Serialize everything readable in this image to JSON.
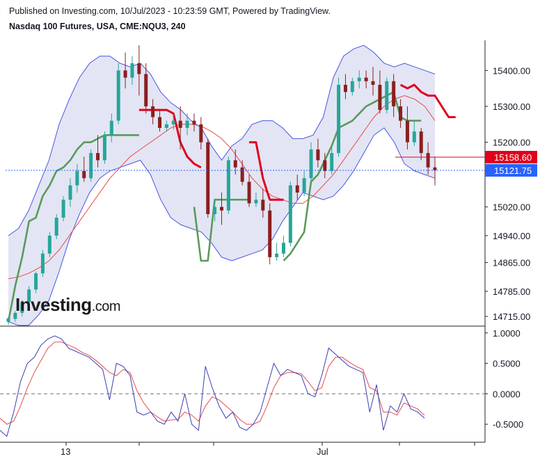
{
  "header": {
    "published": "Published on Investing.com, 10/Jul/2023 - 10:23:59 GMT, Powered by TradingView.",
    "symbol": "Nasdaq 100 Futures, USA, CME:NQU3, 240"
  },
  "watermark": {
    "brand": "Investing",
    "suffix": ".com"
  },
  "colors": {
    "up": "#26a69a",
    "down": "#8b1f1f",
    "band": "#4a55e0",
    "band_fill": "#e3e5f4",
    "ma": "#e74c4c",
    "trail_red": "#e0001b",
    "trail_green": "#5a9a5a",
    "stoch_k": "#3a3fb0",
    "stoch_d": "#e74c4c",
    "last_label": "#2962ff",
    "ref_label": "#e0001b"
  },
  "chart_data": [
    {
      "type": "candlestick",
      "title": "Nasdaq 100 Futures, USA, CME:NQU3, 240",
      "x_tick_labels": [
        "13",
        "Jul"
      ],
      "y_tick_labels": [
        "15400.00",
        "15300.00",
        "15200.00",
        "15020.00",
        "14940.00",
        "14865.00",
        "14785.00",
        "14715.00"
      ],
      "ylim": [
        14690,
        15480
      ],
      "price_labels": {
        "reference": "15158.60",
        "last": "15121.75"
      },
      "bollinger_upper": [
        14940,
        14960,
        15010,
        15080,
        15150,
        15250,
        15320,
        15380,
        15420,
        15440,
        15440,
        15420,
        15410,
        15420,
        15390,
        15340,
        15310,
        15290,
        15260,
        15240,
        15190,
        15150,
        15190,
        15210,
        15250,
        15260,
        15260,
        15240,
        15210,
        15210,
        15220,
        15270,
        15380,
        15440,
        15460,
        15470,
        15450,
        15420,
        15410,
        15420,
        15410,
        15400,
        15390
      ],
      "bollinger_lower": [
        14700,
        14690,
        14690,
        14720,
        14760,
        14840,
        14930,
        15000,
        15060,
        15100,
        15120,
        15130,
        15140,
        15150,
        15110,
        15040,
        14990,
        14970,
        14960,
        14950,
        14920,
        14880,
        14870,
        14880,
        14890,
        14900,
        14930,
        14980,
        15020,
        15060,
        15050,
        15040,
        15050,
        15080,
        15120,
        15170,
        15220,
        15240,
        15200,
        15140,
        15120,
        15110,
        15100
      ],
      "candles": [
        {
          "o": 14700,
          "h": 14715,
          "c": 14710,
          "l": 14692
        },
        {
          "o": 14708,
          "h": 14730,
          "c": 14725,
          "l": 14700
        },
        {
          "o": 14725,
          "h": 14760,
          "c": 14755,
          "l": 14715
        },
        {
          "o": 14755,
          "h": 14800,
          "c": 14790,
          "l": 14745
        },
        {
          "o": 14790,
          "h": 14840,
          "c": 14835,
          "l": 14780
        },
        {
          "o": 14835,
          "h": 14900,
          "c": 14890,
          "l": 14825
        },
        {
          "o": 14890,
          "h": 14950,
          "c": 14940,
          "l": 14880
        },
        {
          "o": 14940,
          "h": 15000,
          "c": 14990,
          "l": 14930
        },
        {
          "o": 14990,
          "h": 15050,
          "c": 15040,
          "l": 14980
        },
        {
          "o": 15040,
          "h": 15100,
          "c": 15080,
          "l": 15020
        },
        {
          "o": 15080,
          "h": 15140,
          "c": 15120,
          "l": 15060
        },
        {
          "o": 15120,
          "h": 15160,
          "c": 15100,
          "l": 15090
        },
        {
          "o": 15100,
          "h": 15180,
          "c": 15170,
          "l": 15090
        },
        {
          "o": 15170,
          "h": 15220,
          "c": 15150,
          "l": 15130
        },
        {
          "o": 15150,
          "h": 15230,
          "c": 15220,
          "l": 15140
        },
        {
          "o": 15220,
          "h": 15280,
          "c": 15260,
          "l": 15200
        },
        {
          "o": 15260,
          "h": 15420,
          "c": 15400,
          "l": 15250
        },
        {
          "o": 15400,
          "h": 15450,
          "c": 15380,
          "l": 15350
        },
        {
          "o": 15380,
          "h": 15440,
          "c": 15420,
          "l": 15360
        },
        {
          "o": 15420,
          "h": 15470,
          "c": 15390,
          "l": 15330
        },
        {
          "o": 15390,
          "h": 15420,
          "c": 15300,
          "l": 15280
        },
        {
          "o": 15300,
          "h": 15320,
          "c": 15270,
          "l": 15250
        },
        {
          "o": 15270,
          "h": 15290,
          "c": 15240,
          "l": 15230
        },
        {
          "o": 15240,
          "h": 15260,
          "c": 15250,
          "l": 15230
        },
        {
          "o": 15250,
          "h": 15280,
          "c": 15260,
          "l": 15235
        },
        {
          "o": 15260,
          "h": 15300,
          "c": 15240,
          "l": 15180
        },
        {
          "o": 15240,
          "h": 15280,
          "c": 15260,
          "l": 15220
        },
        {
          "o": 15260,
          "h": 15280,
          "c": 15250,
          "l": 15230
        },
        {
          "o": 15250,
          "h": 15270,
          "c": 15200,
          "l": 15180
        },
        {
          "o": 15200,
          "h": 15210,
          "c": 15000,
          "l": 14990
        },
        {
          "o": 15000,
          "h": 15040,
          "c": 15020,
          "l": 14980
        },
        {
          "o": 15020,
          "h": 15060,
          "c": 15010,
          "l": 14970
        },
        {
          "o": 15010,
          "h": 15160,
          "c": 15150,
          "l": 15000
        },
        {
          "o": 15150,
          "h": 15180,
          "c": 15130,
          "l": 15110
        },
        {
          "o": 15130,
          "h": 15150,
          "c": 15090,
          "l": 15080
        },
        {
          "o": 15090,
          "h": 15110,
          "c": 15030,
          "l": 15020
        },
        {
          "o": 15030,
          "h": 15060,
          "c": 15040,
          "l": 15020
        },
        {
          "o": 15040,
          "h": 15070,
          "c": 15010,
          "l": 14990
        },
        {
          "o": 15010,
          "h": 15030,
          "c": 14880,
          "l": 14860
        },
        {
          "o": 14880,
          "h": 14920,
          "c": 14890,
          "l": 14870
        },
        {
          "o": 14890,
          "h": 14940,
          "c": 14920,
          "l": 14880
        },
        {
          "o": 14920,
          "h": 15090,
          "c": 15080,
          "l": 14910
        },
        {
          "o": 15080,
          "h": 15110,
          "c": 15060,
          "l": 15040
        },
        {
          "o": 15060,
          "h": 15120,
          "c": 15100,
          "l": 15050
        },
        {
          "o": 15100,
          "h": 15200,
          "c": 15180,
          "l": 15090
        },
        {
          "o": 15180,
          "h": 15210,
          "c": 15150,
          "l": 15130
        },
        {
          "o": 15150,
          "h": 15170,
          "c": 15120,
          "l": 15100
        },
        {
          "o": 15120,
          "h": 15190,
          "c": 15170,
          "l": 15110
        },
        {
          "o": 15170,
          "h": 15380,
          "c": 15360,
          "l": 15160
        },
        {
          "o": 15360,
          "h": 15390,
          "c": 15340,
          "l": 15320
        },
        {
          "o": 15340,
          "h": 15380,
          "c": 15370,
          "l": 15330
        },
        {
          "o": 15370,
          "h": 15400,
          "c": 15380,
          "l": 15350
        },
        {
          "o": 15380,
          "h": 15400,
          "c": 15370,
          "l": 15350
        },
        {
          "o": 15370,
          "h": 15410,
          "c": 15360,
          "l": 15330
        },
        {
          "o": 15360,
          "h": 15400,
          "c": 15290,
          "l": 15280
        },
        {
          "o": 15290,
          "h": 15380,
          "c": 15370,
          "l": 15280
        },
        {
          "o": 15370,
          "h": 15390,
          "c": 15300,
          "l": 15270
        },
        {
          "o": 15300,
          "h": 15320,
          "c": 15260,
          "l": 15240
        },
        {
          "o": 15260,
          "h": 15300,
          "c": 15200,
          "l": 15180
        },
        {
          "o": 15200,
          "h": 15260,
          "c": 15230,
          "l": 15190
        },
        {
          "o": 15230,
          "h": 15240,
          "c": 15170,
          "l": 15150
        },
        {
          "o": 15170,
          "h": 15200,
          "c": 15130,
          "l": 15110
        },
        {
          "o": 15130,
          "h": 15160,
          "c": 15122,
          "l": 15080
        }
      ],
      "ma_mid": [
        14820,
        14825,
        14835,
        14850,
        14870,
        14900,
        14940,
        14980,
        15020,
        15060,
        15100,
        15130,
        15160,
        15180,
        15200,
        15220,
        15240,
        15250,
        15250,
        15245,
        15230,
        15210,
        15180,
        15140,
        15100,
        15070,
        15050,
        15040,
        15030,
        15030,
        15050,
        15080,
        15110,
        15150,
        15190,
        15230,
        15270,
        15300,
        15320,
        15330,
        15320,
        15300,
        15260
      ],
      "trail_segments": [
        {
          "color": "green",
          "points": [
            [
              0,
              14700
            ],
            [
              1,
              14800
            ],
            [
              2,
              14880
            ],
            [
              3,
              14980
            ],
            [
              4,
              14990
            ],
            [
              5,
              15050
            ],
            [
              6,
              15080
            ],
            [
              7,
              15120
            ],
            [
              8,
              15130
            ],
            [
              9,
              15150
            ],
            [
              10,
              15180
            ],
            [
              11,
              15200
            ],
            [
              12,
              15200
            ],
            [
              13,
              15210
            ],
            [
              14,
              15220
            ],
            [
              15,
              15220
            ],
            [
              16,
              15220
            ],
            [
              17,
              15220
            ],
            [
              18,
              15220
            ],
            [
              19,
              15220
            ]
          ]
        },
        {
          "color": "red",
          "points": [
            [
              19,
              15290
            ],
            [
              20,
              15290
            ],
            [
              21,
              15290
            ],
            [
              22,
              15290
            ],
            [
              23,
              15290
            ],
            [
              24,
              15280
            ],
            [
              25,
              15200
            ],
            [
              26,
              15160
            ],
            [
              27,
              15140
            ],
            [
              28,
              15130
            ]
          ]
        },
        {
          "color": "green",
          "points": [
            [
              27,
              15020
            ],
            [
              28,
              14870
            ],
            [
              29,
              14870
            ],
            [
              30,
              15040
            ],
            [
              31,
              15040
            ],
            [
              32,
              15040
            ],
            [
              33,
              15040
            ],
            [
              34,
              15040
            ],
            [
              35,
              15040
            ]
          ]
        },
        {
          "color": "red",
          "points": [
            [
              35,
              15200
            ],
            [
              36,
              15200
            ],
            [
              37,
              15100
            ],
            [
              38,
              15040
            ],
            [
              39,
              15040
            ],
            [
              40,
              15040
            ]
          ]
        },
        {
          "color": "green",
          "points": [
            [
              40,
              14870
            ],
            [
              41,
              14890
            ],
            [
              42,
              14920
            ],
            [
              43,
              14950
            ],
            [
              44,
              15090
            ],
            [
              45,
              15110
            ],
            [
              46,
              15150
            ],
            [
              47,
              15190
            ],
            [
              48,
              15240
            ],
            [
              49,
              15250
            ],
            [
              50,
              15260
            ],
            [
              51,
              15280
            ],
            [
              52,
              15300
            ],
            [
              53,
              15310
            ],
            [
              54,
              15320
            ],
            [
              55,
              15330
            ],
            [
              56,
              15340
            ],
            [
              57,
              15270
            ],
            [
              58,
              15260
            ],
            [
              59,
              15260
            ],
            [
              60,
              15260
            ]
          ]
        },
        {
          "color": "red",
          "points": [
            [
              57,
              15360
            ],
            [
              58,
              15350
            ],
            [
              59,
              15360
            ],
            [
              60,
              15340
            ],
            [
              61,
              15330
            ],
            [
              62,
              15330
            ],
            [
              63,
              15300
            ],
            [
              64,
              15270
            ],
            [
              65,
              15270
            ]
          ]
        }
      ],
      "stochastic": {
        "y_tick_labels": [
          "1.0000",
          "0.5000",
          "0.0000",
          "-0.5000"
        ],
        "ylim": [
          -0.75,
          1.1
        ],
        "k": [
          -0.6,
          -0.7,
          -0.3,
          0.2,
          0.5,
          0.6,
          0.8,
          0.9,
          0.95,
          0.9,
          0.75,
          0.7,
          0.65,
          0.6,
          0.5,
          0.4,
          -0.1,
          0.5,
          0.45,
          0.3,
          -0.3,
          -0.35,
          -0.3,
          -0.45,
          -0.5,
          -0.3,
          -0.45,
          0.0,
          -0.5,
          -0.6,
          0.45,
          0.1,
          -0.2,
          -0.4,
          -0.3,
          -0.55,
          -0.6,
          -0.5,
          -0.3,
          0.1,
          0.5,
          0.3,
          0.4,
          0.35,
          0.3,
          0.0,
          -0.05,
          0.3,
          0.75,
          0.65,
          0.55,
          0.45,
          0.4,
          0.35,
          -0.3,
          0.15,
          -0.6,
          -0.2,
          -0.3,
          0.0,
          -0.25,
          -0.3,
          -0.4
        ],
        "d": [
          -0.4,
          -0.5,
          -0.45,
          -0.2,
          0.1,
          0.35,
          0.55,
          0.75,
          0.85,
          0.85,
          0.8,
          0.75,
          0.68,
          0.63,
          0.55,
          0.45,
          0.35,
          0.3,
          0.4,
          0.35,
          0.05,
          -0.15,
          -0.3,
          -0.38,
          -0.45,
          -0.43,
          -0.42,
          -0.3,
          -0.35,
          -0.45,
          -0.2,
          -0.05,
          -0.1,
          -0.2,
          -0.3,
          -0.42,
          -0.5,
          -0.5,
          -0.45,
          -0.2,
          0.1,
          0.3,
          0.35,
          0.35,
          0.33,
          0.2,
          0.05,
          0.1,
          0.45,
          0.6,
          0.6,
          0.52,
          0.45,
          0.4,
          0.1,
          0.05,
          -0.3,
          -0.3,
          -0.35,
          -0.15,
          -0.2,
          -0.25,
          -0.35
        ]
      }
    }
  ]
}
